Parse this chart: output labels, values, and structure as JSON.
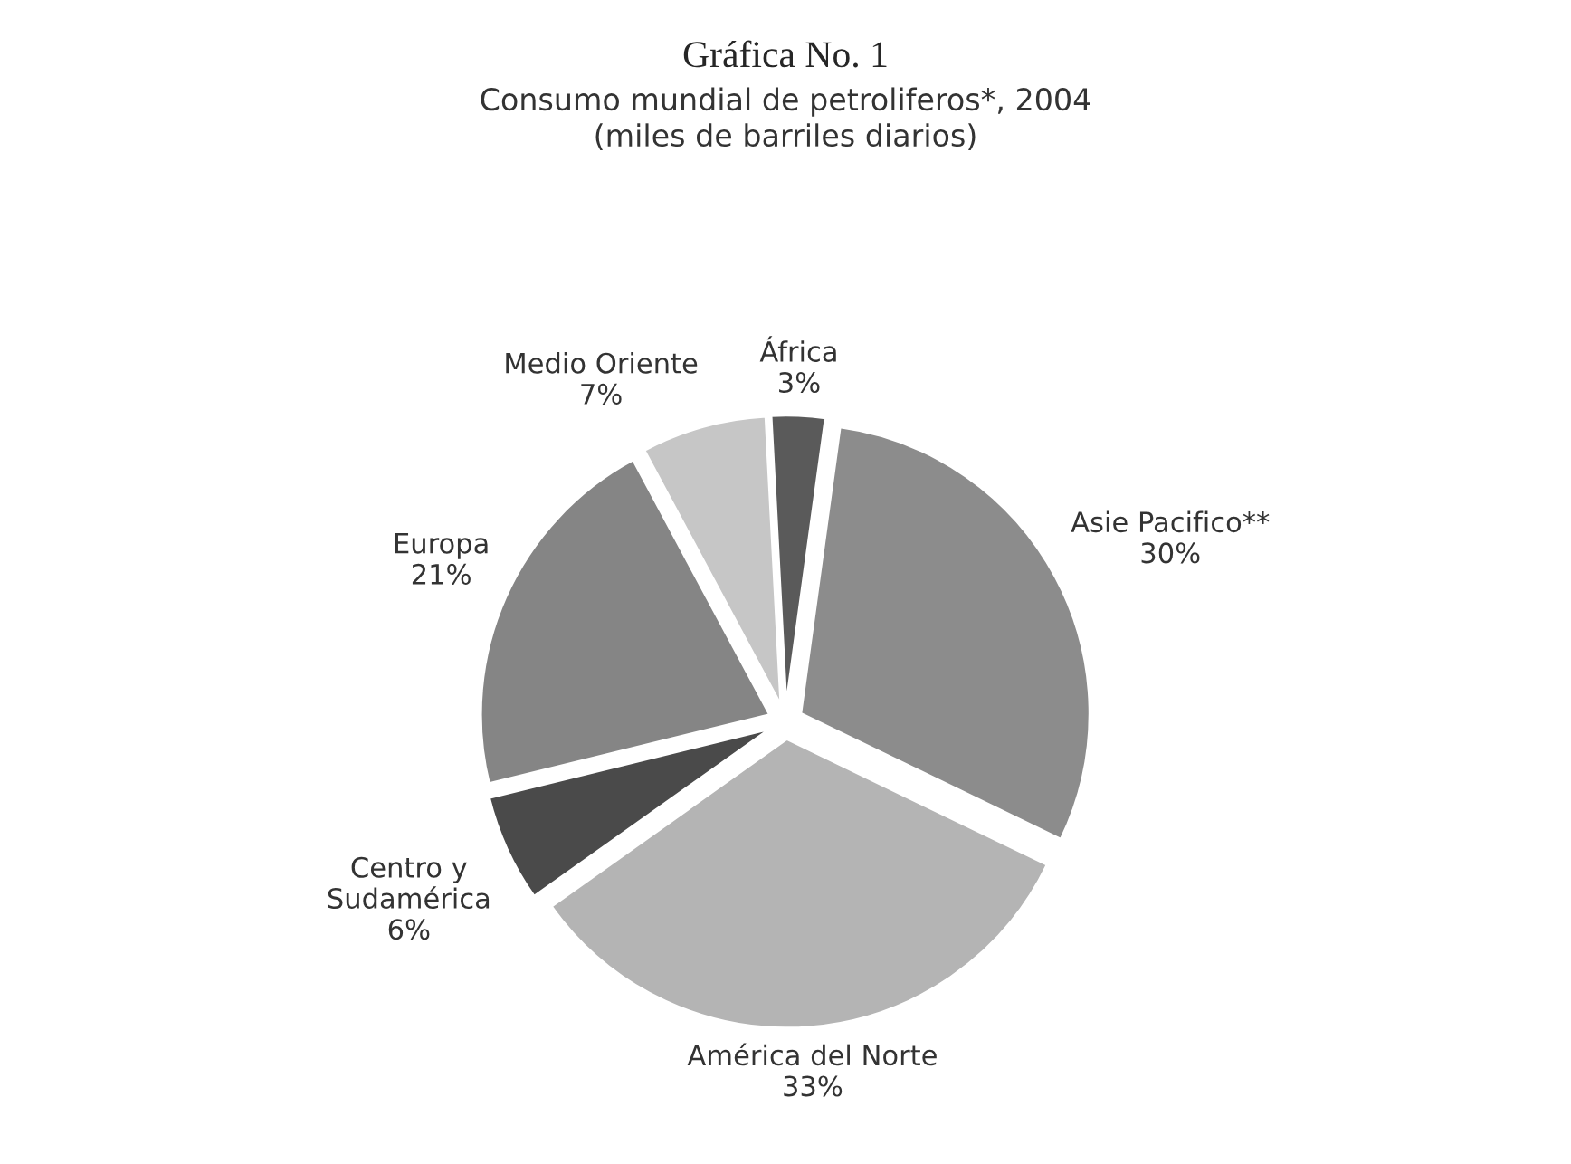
{
  "chart_data": {
    "type": "pie",
    "title": "Gráfica No. 1",
    "subtitle": "Consumo mundial de petroliferos*, 2004\n(miles de barriles diarios)",
    "categories": [
      "África",
      "Asie Pacifico**",
      "América del Norte",
      "Centro y\nSudamérica",
      "Europa",
      "Medio Oriente"
    ],
    "values": [
      3,
      30,
      33,
      6,
      21,
      7
    ],
    "value_labels": [
      "3%",
      "30%",
      "33%",
      "6%",
      "21%",
      "7%"
    ],
    "colors": [
      "#5a5a5a",
      "#8c8c8c",
      "#b4b4b4",
      "#4a4a4a",
      "#858585",
      "#c6c6c6"
    ]
  }
}
